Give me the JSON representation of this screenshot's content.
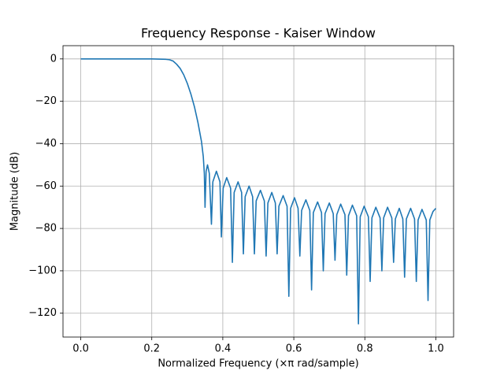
{
  "chart_data": {
    "type": "line",
    "title": "Frequency Response - Kaiser Window",
    "x_label": "Normalized Frequency (×π rad/sample)",
    "y_label": "Magnitude (dB)",
    "color": "#1f77b4",
    "grid": true,
    "xlim": [
      -0.05,
      1.05
    ],
    "ylim": [
      -131.25,
      6.25
    ],
    "xticks": [
      {
        "value": 0,
        "label": "0.0"
      },
      {
        "value": 0.2,
        "label": "0.2"
      },
      {
        "value": 0.4,
        "label": "0.4"
      },
      {
        "value": 0.6,
        "label": "0.6"
      },
      {
        "value": 0.8,
        "label": "0.8"
      },
      {
        "value": 1,
        "label": "1.0"
      }
    ],
    "yticks": [
      0,
      {
        "value": -20,
        "label": "−20"
      },
      {
        "value": -40,
        "label": "−40"
      },
      {
        "value": -60,
        "label": "−60"
      },
      {
        "value": -80,
        "label": "−80"
      },
      {
        "value": -100,
        "label": "−100"
      },
      {
        "value": -120,
        "label": "−120"
      }
    ],
    "x": [
      0,
      0.1,
      0.2,
      0.22,
      0.24,
      0.25,
      0.26,
      0.27,
      0.28,
      0.29,
      0.3,
      0.31,
      0.32,
      0.33,
      0.34,
      0.345,
      0.348,
      0.35,
      0.353,
      0.357,
      0.362,
      0.368,
      0.372,
      0.382,
      0.392,
      0.396,
      0.401,
      0.411,
      0.422,
      0.427,
      0.432,
      0.443,
      0.453,
      0.458,
      0.463,
      0.474,
      0.484,
      0.489,
      0.494,
      0.506,
      0.517,
      0.522,
      0.527,
      0.538,
      0.548,
      0.553,
      0.558,
      0.57,
      0.581,
      0.586,
      0.591,
      0.602,
      0.612,
      0.617,
      0.622,
      0.634,
      0.645,
      0.65,
      0.655,
      0.667,
      0.678,
      0.683,
      0.688,
      0.7,
      0.711,
      0.716,
      0.721,
      0.732,
      0.744,
      0.749,
      0.754,
      0.765,
      0.777,
      0.782,
      0.787,
      0.798,
      0.81,
      0.815,
      0.82,
      0.831,
      0.843,
      0.848,
      0.853,
      0.864,
      0.876,
      0.881,
      0.886,
      0.897,
      0.907,
      0.912,
      0.917,
      0.929,
      0.94,
      0.945,
      0.95,
      0.961,
      0.973,
      0.978,
      0.983,
      0.992,
      1.0
    ],
    "values": [
      0,
      0,
      0,
      -0.1,
      -0.2,
      -0.4,
      -1,
      -2.5,
      -4.5,
      -7.5,
      -11.5,
      -16.5,
      -22.5,
      -30,
      -39,
      -46,
      -54,
      -70,
      -53,
      -50,
      -54,
      -78,
      -58,
      -53,
      -58,
      -84,
      -61,
      -56,
      -61,
      -96,
      -63,
      -58,
      -63,
      -92,
      -65,
      -60,
      -65,
      -92,
      -67,
      -62,
      -67,
      -93,
      -68,
      -63,
      -68,
      -92,
      -69.5,
      -64.5,
      -69.5,
      -112,
      -70.5,
      -65.5,
      -70.5,
      -93,
      -71.5,
      -66.5,
      -71.5,
      -109,
      -72.5,
      -67.5,
      -72.5,
      -100,
      -73,
      -68,
      -73,
      -95,
      -73.5,
      -68.5,
      -73.5,
      -102,
      -74,
      -69,
      -74,
      -125,
      -74.5,
      -69.5,
      -74.5,
      -105,
      -75,
      -70,
      -75,
      -100,
      -75,
      -70,
      -75,
      -96,
      -75.5,
      -70.5,
      -75.5,
      -103,
      -75.5,
      -70.5,
      -75.5,
      -105,
      -76,
      -71,
      -76,
      -114,
      -76,
      -72,
      -70.5
    ]
  }
}
